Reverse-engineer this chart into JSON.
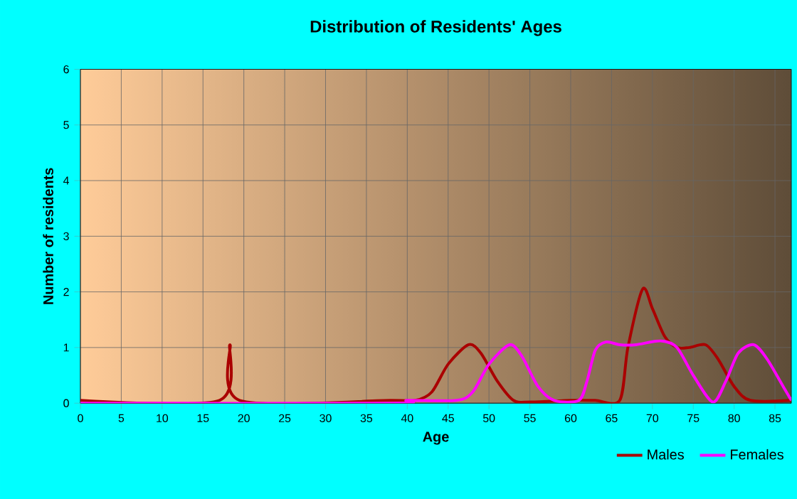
{
  "chart_data": {
    "type": "line",
    "title": "Distribution of Residents' Ages",
    "xlabel": "Age",
    "ylabel": "Number of residents",
    "xlim": [
      0,
      87
    ],
    "ylim": [
      0,
      6
    ],
    "xticks": [
      0,
      5,
      10,
      15,
      20,
      25,
      30,
      35,
      40,
      45,
      50,
      55,
      60,
      65,
      70,
      75,
      80,
      85
    ],
    "yticks": [
      0,
      1,
      2,
      3,
      4,
      5,
      6
    ],
    "grid": true,
    "legend": "bottom right",
    "marker": "none",
    "line_style": "solid",
    "series": [
      {
        "name": "Males",
        "color": "#aa0000",
        "x": [
          0,
          17,
          18.3,
          19.5,
          38,
          41,
          43,
          45,
          47.5,
          49,
          51,
          53,
          55,
          60,
          63,
          66,
          67,
          68.8,
          70,
          71.5,
          73,
          74.5,
          76.5,
          78,
          80,
          82,
          87
        ],
        "values": [
          0.05,
          0.05,
          1.05,
          0.05,
          0.05,
          0.05,
          0.2,
          0.7,
          1.05,
          0.9,
          0.4,
          0.05,
          0.02,
          0.05,
          0.05,
          0.05,
          1.0,
          2.05,
          1.7,
          1.2,
          1.0,
          1.0,
          1.05,
          0.8,
          0.3,
          0.05,
          0.05
        ]
      },
      {
        "name": "Females",
        "color": "#ff00ff",
        "x": [
          0,
          38,
          40,
          46,
          48,
          50,
          52.5,
          54,
          56,
          58,
          61,
          62,
          63,
          64.3,
          66,
          68,
          71,
          73,
          75,
          77.4,
          79,
          80.5,
          82.4,
          84,
          86,
          87
        ],
        "values": [
          0,
          0,
          0.05,
          0.05,
          0.2,
          0.7,
          1.05,
          0.85,
          0.3,
          0.05,
          0.05,
          0.4,
          0.95,
          1.1,
          1.05,
          1.05,
          1.12,
          1.0,
          0.5,
          0.02,
          0.4,
          0.9,
          1.05,
          0.8,
          0.3,
          0.05
        ]
      }
    ]
  }
}
